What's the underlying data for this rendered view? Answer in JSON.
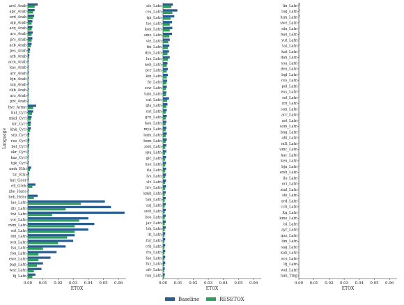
{
  "chart_data": {
    "type": "bar",
    "orientation": "horizontal",
    "legend": {
      "placement": "bottom-center",
      "entries": [
        "Baseline",
        "RESETOX"
      ]
    },
    "colors": {
      "Baseline": "#2a5d8f",
      "RESETOX": "#2ca05a"
    },
    "ylabel": "Language",
    "panels": [
      {
        "xlabel": "ETOX",
        "xlim": [
          0,
          0.065
        ],
        "xticks": [
          "0.00",
          "0.01",
          "0.02",
          "0.03",
          "0.04",
          "0.05",
          "0.06"
        ],
        "xtick_values": [
          0,
          0.01,
          0.02,
          0.03,
          0.04,
          0.05,
          0.06
        ],
        "categories": [
          "arsl_Arab",
          "apc_Arab",
          "urd_Arab",
          "ajp_Arab",
          "acq_Arab",
          "ars_Arab",
          "prs_Arab",
          "acb_Arab",
          "pes_Arab",
          "arb_Arab",
          "acm_Arab",
          "kas_Arab",
          "ary_Arab",
          "bjn_Arab",
          "uig_Arab",
          "ckb_Arab",
          "arz_Arab",
          "pbt_Arab",
          "hye_Armn",
          "bul_Cyrl",
          "mkd_Cyrl",
          "kir_Cyrl",
          "khk_Cyrl",
          "srp_Cyrl",
          "rus_Cyrl",
          "bel_Cyrl",
          "ukr_Cyrl",
          "kaz_Cyrl",
          "tgk_Cyrl",
          "amh_Ethi",
          "tir_Ethi",
          "kat_Geor",
          "ell_Grek",
          "zho_Hans",
          "heb_Hebr",
          "lao_Latn",
          "div_Latn",
          "twi_Latn",
          "yor_Latn",
          "mim_Latn",
          "sot_Latn",
          "lml_Latn",
          "ocn_Latn",
          "tsu_Latn",
          "fon_Latn",
          "ewe_Latn",
          "pap_Latn",
          "war_Latn",
          "fij_Latn"
        ],
        "series": [
          {
            "name": "Baseline",
            "values": [
              0.0065,
              0.0045,
              0.0042,
              0.003,
              0.003,
              0.0032,
              0.003,
              0.0025,
              0.0015,
              0.001,
              0.0005,
              0.0005,
              0.0005,
              0.0005,
              0.0005,
              0.0005,
              0.0005,
              0.0005,
              0.0055,
              0.0035,
              0.0025,
              0.002,
              0.002,
              0.001,
              0.001,
              0.0008,
              0.0005,
              0.0005,
              0.0005,
              0.0022,
              0.0008,
              0.0005,
              0.005,
              0.0005,
              0.0065,
              0.051,
              0.055,
              0.064,
              0.04,
              0.044,
              0.04,
              0.031,
              0.03,
              0.025,
              0.019,
              0.015,
              0.01,
              0.009,
              0.005
            ]
          },
          {
            "name": "RESETOX",
            "values": [
              0.0045,
              0.0035,
              0.0035,
              0.0025,
              0.0025,
              0.0025,
              0.0025,
              0.002,
              0.0012,
              0.0008,
              0.0004,
              0.0004,
              0.0004,
              0.0004,
              0.0004,
              0.0004,
              0.0004,
              0.0004,
              0.0035,
              0.0028,
              0.002,
              0.0018,
              0.0015,
              0.0008,
              0.0008,
              0.0006,
              0.0004,
              0.0004,
              0.0004,
              0.0015,
              0.0006,
              0.0004,
              0.003,
              0.0004,
              0.004,
              0.035,
              0.025,
              0.016,
              0.034,
              0.031,
              0.031,
              0.026,
              0.02,
              0.01,
              0.007,
              0.007,
              0.006,
              0.004,
              0.003
            ]
          }
        ]
      },
      {
        "xlabel": "ETOX",
        "xlim": [
          0,
          0.065
        ],
        "xticks": [
          "0.00",
          "0.01",
          "0.02",
          "0.03",
          "0.04",
          "0.05",
          "0.06"
        ],
        "xtick_values": [
          0,
          0.01,
          0.02,
          0.03,
          0.04,
          0.05,
          0.06
        ],
        "categories": [
          "als_Latn",
          "ces_Latn",
          "tpi_Latn",
          "tso_Latn",
          "kon_Latn",
          "smo_Latn",
          "vie_Latn",
          "fin_Latn",
          "dyu_Latn",
          "lus_Latn",
          "nob_Latn",
          "pcr_Latn",
          "kin_Latn",
          "fir_Latn",
          "ssw_Latn",
          "tum_Latn",
          "cat_Latn",
          "gla_Latn",
          "est_Latn",
          "grn_Latn",
          "hau_Latn",
          "mya_Latn",
          "bam_Latn",
          "bem_Latn",
          "zsm_Latn",
          "spa_Latn",
          "glc_Latn",
          "nso_Latn",
          "ita_Latn",
          "lvs_Latn",
          "slv_Latn",
          "hrv_Latn",
          "kmb_Latn",
          "tak_Latn",
          "azj_Latn",
          "swh_Latn",
          "bos_Latn",
          "jav_Latn",
          "lsk_Latn",
          "lit_Latn",
          "fur_Latn",
          "crh_Latn",
          "fra_Latn",
          "fao_Latn",
          "fuv_Latn",
          "afr_Latn",
          "run_Latn"
        ],
        "series": [
          {
            "name": "Baseline",
            "values": [
              0.0065,
              0.0095,
              0.0075,
              0.006,
              0.0062,
              0.006,
              0.0045,
              0.0042,
              0.004,
              0.0045,
              0.003,
              0.0032,
              0.0032,
              0.0028,
              0.0025,
              0.0022,
              0.004,
              0.003,
              0.0025,
              0.0025,
              0.0022,
              0.0022,
              0.0025,
              0.0025,
              0.0022,
              0.0022,
              0.002,
              0.002,
              0.002,
              0.002,
              0.002,
              0.002,
              0.0018,
              0.0018,
              0.0018,
              0.0018,
              0.0018,
              0.0018,
              0.0018,
              0.0015,
              0.0015,
              0.0015,
              0.0015,
              0.0015,
              0.0015,
              0.0012,
              0.0012
            ]
          },
          {
            "name": "RESETOX",
            "values": [
              0.0055,
              0.0062,
              0.005,
              0.0045,
              0.0045,
              0.0042,
              0.0035,
              0.0032,
              0.003,
              0.0032,
              0.0025,
              0.0025,
              0.0025,
              0.0022,
              0.002,
              0.002,
              0.0028,
              0.0022,
              0.0018,
              0.0018,
              0.0018,
              0.0018,
              0.0018,
              0.0018,
              0.0015,
              0.0015,
              0.0015,
              0.0015,
              0.0015,
              0.0015,
              0.0015,
              0.0015,
              0.0012,
              0.0012,
              0.0012,
              0.0012,
              0.0012,
              0.0012,
              0.0012,
              0.001,
              0.001,
              0.001,
              0.001,
              0.001,
              0.001,
              0.0008,
              0.0008
            ]
          }
        ]
      },
      {
        "xlabel": "ETOX",
        "xlim": [
          0,
          0.065
        ],
        "xticks": [
          "0.00",
          "0.01",
          "0.02",
          "0.03",
          "0.04",
          "0.05",
          "0.06"
        ],
        "xtick_values": [
          0,
          0.01,
          0.02,
          0.03,
          0.04,
          0.05,
          0.06
        ],
        "categories": [
          "lin_Latn",
          "lug_Latn",
          "hun_Latn",
          "swe_Latn",
          "nlu_Latn",
          "ban_Latn",
          "yut_Latn",
          "tat_Latn",
          "kat_Latn",
          "dan_Latn",
          "ysa_Latn",
          "deu_Latn",
          "bgl_Latn",
          "ces_Latn",
          "pol_Latn",
          "eus_Latn",
          "sol_Latn",
          "nri_Latn",
          "sun_Latn",
          "acr_Latn",
          "ast_Latn",
          "som_Latn",
          "bug_Latn",
          "ahl_Latn",
          "mlt_Latn",
          "umc_Latn",
          "kac_Latn",
          "ken_Latn",
          "bjn_Latn",
          "smh_Latn",
          "ilo_Latn",
          "oci_Latn",
          "mul_Latn",
          "slk_Latn",
          "ord_Latn",
          "ccb_Latn",
          "ltg_Latn",
          "kmo_Latn",
          "isl_Latn",
          "ayr_Latn",
          "gaz_Latn",
          "lim_Latn",
          "sag_Latn",
          "kab_Latn",
          "sco_Latn",
          "ltj_Latn",
          "wol_Latn",
          "tam_Tlng"
        ],
        "series": [
          {
            "name": "Baseline",
            "values": [
              0.0005,
              0.0004,
              0.0004,
              0.0003,
              0.0003,
              0.0003,
              0.0003,
              0.0003,
              0.0003,
              0.0003,
              0.0002,
              0.0002,
              0.0002,
              0.0002,
              0.0002,
              0.0002,
              0.0002,
              0.0002,
              0.0002,
              0.0002,
              0.0002,
              0.0002,
              0.0002,
              0.0002,
              0.0002,
              0.0002,
              0.0002,
              0.0002,
              0.0002,
              0.0001,
              0.0001,
              0.0001,
              0.0001,
              0.0001,
              0.0001,
              0.0001,
              0.0001,
              0.0001,
              0.0001,
              0.0001,
              0.0001,
              0.0001,
              0.0001,
              0.0001,
              0.0001,
              0.0001,
              0.0001,
              0.0001
            ]
          },
          {
            "name": "RESETOX",
            "values": [
              0.0003,
              0.0002,
              0.0002,
              0.0002,
              0.0002,
              0.0002,
              0.0002,
              0.0002,
              0.0002,
              0.0002,
              0.0001,
              0.0001,
              0.0001,
              0.0001,
              0.0001,
              0.0001,
              0.0001,
              0.0001,
              0.0001,
              0.0001,
              0.0001,
              0.0001,
              0.0001,
              0.0001,
              0.0001,
              0.0001,
              0.0001,
              0.0001,
              0.0001,
              0.0001,
              0.0001,
              0.0001,
              0.0001,
              0.0001,
              0.0001,
              0.0001,
              0.0001,
              0.0001,
              0.0001,
              0.0001,
              0.0001,
              0.0001,
              0.0001,
              0.0001,
              0.0001,
              0.0001,
              0.0001,
              0.0001
            ]
          }
        ]
      }
    ]
  }
}
